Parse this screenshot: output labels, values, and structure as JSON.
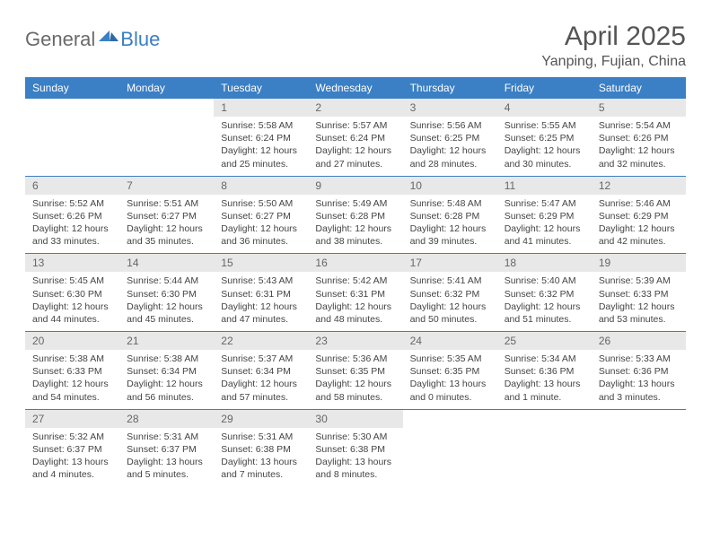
{
  "logo": {
    "part1": "General",
    "part2": "Blue"
  },
  "title": "April 2025",
  "location": "Yanping, Fujian, China",
  "header_bg": "#3b7fc4",
  "daynum_bg": "#e8e8e8",
  "columns": [
    "Sunday",
    "Monday",
    "Tuesday",
    "Wednesday",
    "Thursday",
    "Friday",
    "Saturday"
  ],
  "weeks": [
    [
      {
        "n": "",
        "empty": true
      },
      {
        "n": "",
        "empty": true
      },
      {
        "n": "1",
        "sr": "5:58 AM",
        "ss": "6:24 PM",
        "dl": "12 hours and 25 minutes."
      },
      {
        "n": "2",
        "sr": "5:57 AM",
        "ss": "6:24 PM",
        "dl": "12 hours and 27 minutes."
      },
      {
        "n": "3",
        "sr": "5:56 AM",
        "ss": "6:25 PM",
        "dl": "12 hours and 28 minutes."
      },
      {
        "n": "4",
        "sr": "5:55 AM",
        "ss": "6:25 PM",
        "dl": "12 hours and 30 minutes."
      },
      {
        "n": "5",
        "sr": "5:54 AM",
        "ss": "6:26 PM",
        "dl": "12 hours and 32 minutes."
      }
    ],
    [
      {
        "n": "6",
        "sr": "5:52 AM",
        "ss": "6:26 PM",
        "dl": "12 hours and 33 minutes."
      },
      {
        "n": "7",
        "sr": "5:51 AM",
        "ss": "6:27 PM",
        "dl": "12 hours and 35 minutes."
      },
      {
        "n": "8",
        "sr": "5:50 AM",
        "ss": "6:27 PM",
        "dl": "12 hours and 36 minutes."
      },
      {
        "n": "9",
        "sr": "5:49 AM",
        "ss": "6:28 PM",
        "dl": "12 hours and 38 minutes."
      },
      {
        "n": "10",
        "sr": "5:48 AM",
        "ss": "6:28 PM",
        "dl": "12 hours and 39 minutes."
      },
      {
        "n": "11",
        "sr": "5:47 AM",
        "ss": "6:29 PM",
        "dl": "12 hours and 41 minutes."
      },
      {
        "n": "12",
        "sr": "5:46 AM",
        "ss": "6:29 PM",
        "dl": "12 hours and 42 minutes."
      }
    ],
    [
      {
        "n": "13",
        "sr": "5:45 AM",
        "ss": "6:30 PM",
        "dl": "12 hours and 44 minutes."
      },
      {
        "n": "14",
        "sr": "5:44 AM",
        "ss": "6:30 PM",
        "dl": "12 hours and 45 minutes."
      },
      {
        "n": "15",
        "sr": "5:43 AM",
        "ss": "6:31 PM",
        "dl": "12 hours and 47 minutes."
      },
      {
        "n": "16",
        "sr": "5:42 AM",
        "ss": "6:31 PM",
        "dl": "12 hours and 48 minutes."
      },
      {
        "n": "17",
        "sr": "5:41 AM",
        "ss": "6:32 PM",
        "dl": "12 hours and 50 minutes."
      },
      {
        "n": "18",
        "sr": "5:40 AM",
        "ss": "6:32 PM",
        "dl": "12 hours and 51 minutes."
      },
      {
        "n": "19",
        "sr": "5:39 AM",
        "ss": "6:33 PM",
        "dl": "12 hours and 53 minutes."
      }
    ],
    [
      {
        "n": "20",
        "sr": "5:38 AM",
        "ss": "6:33 PM",
        "dl": "12 hours and 54 minutes."
      },
      {
        "n": "21",
        "sr": "5:38 AM",
        "ss": "6:34 PM",
        "dl": "12 hours and 56 minutes."
      },
      {
        "n": "22",
        "sr": "5:37 AM",
        "ss": "6:34 PM",
        "dl": "12 hours and 57 minutes."
      },
      {
        "n": "23",
        "sr": "5:36 AM",
        "ss": "6:35 PM",
        "dl": "12 hours and 58 minutes."
      },
      {
        "n": "24",
        "sr": "5:35 AM",
        "ss": "6:35 PM",
        "dl": "13 hours and 0 minutes."
      },
      {
        "n": "25",
        "sr": "5:34 AM",
        "ss": "6:36 PM",
        "dl": "13 hours and 1 minute."
      },
      {
        "n": "26",
        "sr": "5:33 AM",
        "ss": "6:36 PM",
        "dl": "13 hours and 3 minutes."
      }
    ],
    [
      {
        "n": "27",
        "sr": "5:32 AM",
        "ss": "6:37 PM",
        "dl": "13 hours and 4 minutes."
      },
      {
        "n": "28",
        "sr": "5:31 AM",
        "ss": "6:37 PM",
        "dl": "13 hours and 5 minutes."
      },
      {
        "n": "29",
        "sr": "5:31 AM",
        "ss": "6:38 PM",
        "dl": "13 hours and 7 minutes."
      },
      {
        "n": "30",
        "sr": "5:30 AM",
        "ss": "6:38 PM",
        "dl": "13 hours and 8 minutes."
      },
      {
        "n": "",
        "empty": true
      },
      {
        "n": "",
        "empty": true
      },
      {
        "n": "",
        "empty": true
      }
    ]
  ],
  "labels": {
    "sunrise": "Sunrise: ",
    "sunset": "Sunset: ",
    "daylight": "Daylight: "
  }
}
